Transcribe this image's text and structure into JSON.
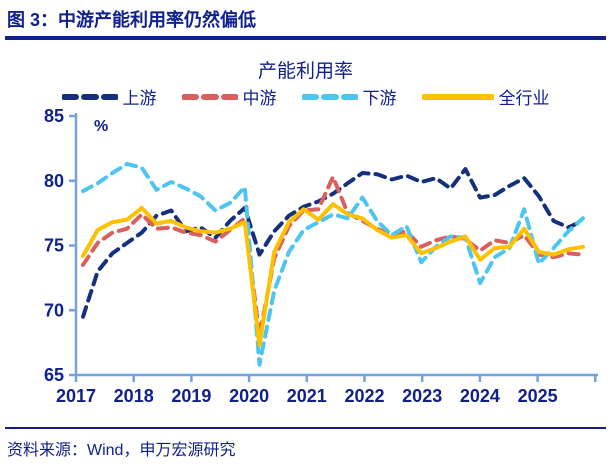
{
  "header": {
    "title": "图 3：中游产能利用率仍然偏低"
  },
  "source_note": "资料来源：Wind，申万宏源研究",
  "chart_data": {
    "type": "line",
    "title": "产能利用率",
    "unit_label": "%",
    "grid": false,
    "legend_position": "top",
    "text_color": "#10218B",
    "axis_color": "#74A3DB",
    "ylim": [
      65,
      85
    ],
    "y_ticks": [
      85,
      80,
      75,
      70,
      65
    ],
    "x_tick_labels": [
      "2017",
      "2018",
      "2019",
      "2020",
      "2021",
      "2022",
      "2023",
      "2024",
      "2025"
    ],
    "x": [
      "2017Q1",
      "2017Q2",
      "2017Q3",
      "2017Q4",
      "2018Q1",
      "2018Q2",
      "2018Q3",
      "2018Q4",
      "2019Q1",
      "2019Q2",
      "2019Q3",
      "2019Q4",
      "2020Q1",
      "2020Q2",
      "2020Q3",
      "2020Q4",
      "2021Q1",
      "2021Q2",
      "2021Q3",
      "2021Q4",
      "2022Q1",
      "2022Q2",
      "2022Q3",
      "2022Q4",
      "2023Q1",
      "2023Q2",
      "2023Q3",
      "2023Q4",
      "2024Q1",
      "2024Q2",
      "2024Q3",
      "2024Q4",
      "2025Q1",
      "2025Q2",
      "2025Q3"
    ],
    "series": [
      {
        "name": "上游",
        "color": "#15317E",
        "dash": "dashed",
        "values": [
          69.5,
          73.0,
          74.4,
          75.2,
          76.0,
          77.3,
          77.7,
          76.1,
          76.4,
          75.6,
          76.9,
          77.9,
          74.3,
          76.1,
          77.3,
          78.0,
          78.4,
          79.0,
          79.8,
          80.6,
          80.5,
          80.1,
          80.4,
          79.9,
          80.2,
          79.4,
          80.9,
          78.7,
          78.9,
          79.6,
          80.2,
          78.8,
          76.9,
          76.4,
          76.9
        ]
      },
      {
        "name": "中游",
        "color": "#D9605C",
        "dash": "dashed",
        "values": [
          73.5,
          75.2,
          76.0,
          76.3,
          77.4,
          76.3,
          76.4,
          76.0,
          75.8,
          75.3,
          76.2,
          77.1,
          68.0,
          74.0,
          76.5,
          77.7,
          77.8,
          80.3,
          77.5,
          76.9,
          76.3,
          75.8,
          76.1,
          74.9,
          75.4,
          75.7,
          75.5,
          74.6,
          75.4,
          75.2,
          75.8,
          74.3,
          74.1,
          74.4,
          74.3
        ]
      },
      {
        "name": "下游",
        "color": "#4EC5F1",
        "dash": "dashed",
        "values": [
          79.2,
          79.8,
          80.6,
          81.3,
          81.0,
          79.3,
          79.9,
          79.4,
          78.8,
          77.7,
          78.3,
          79.5,
          65.8,
          71.5,
          74.5,
          76.2,
          76.8,
          77.4,
          77.1,
          78.7,
          76.9,
          75.8,
          76.5,
          73.7,
          74.9,
          75.7,
          75.6,
          72.1,
          74.1,
          74.8,
          77.8,
          73.6,
          74.8,
          76.1,
          77.1
        ]
      },
      {
        "name": "全行业",
        "color": "#FFC000",
        "dash": "solid",
        "values": [
          74.2,
          76.2,
          76.8,
          77.0,
          77.9,
          76.7,
          76.9,
          76.4,
          76.1,
          76.0,
          76.3,
          76.8,
          67.3,
          74.5,
          76.8,
          77.8,
          77.0,
          78.2,
          77.4,
          77.1,
          76.2,
          75.6,
          75.8,
          74.4,
          74.8,
          75.3,
          75.7,
          73.9,
          74.8,
          74.9,
          76.3,
          74.5,
          74.3,
          74.7,
          74.9
        ]
      }
    ]
  }
}
